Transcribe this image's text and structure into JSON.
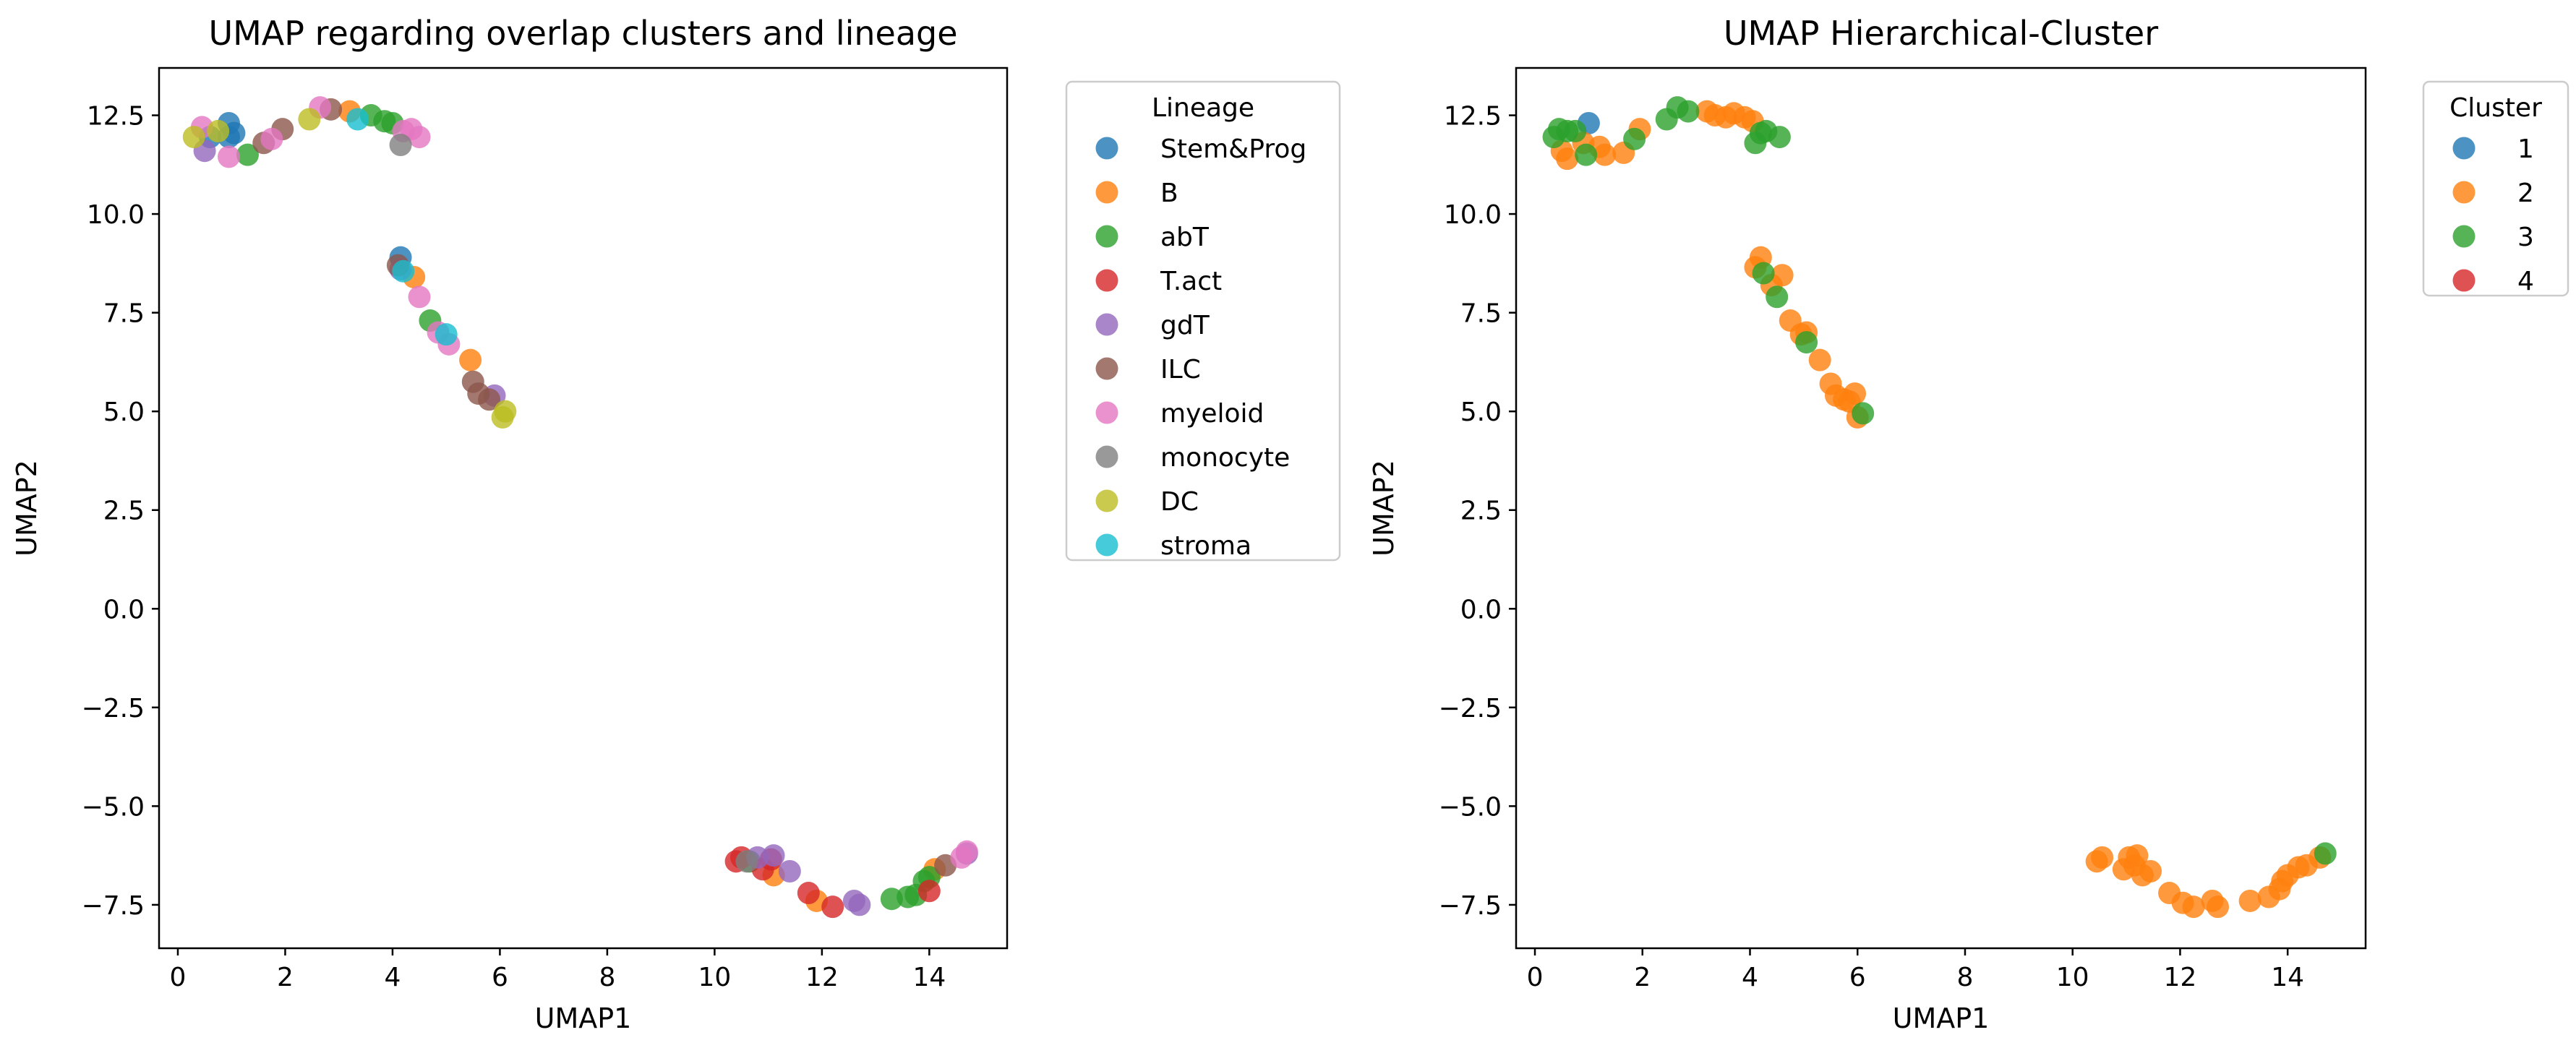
{
  "chart_data": [
    {
      "type": "scatter",
      "title": "UMAP regarding overlap clusters and lineage",
      "xlabel": "UMAP1",
      "ylabel": "UMAP2",
      "xlim": [
        -0.35,
        15.45
      ],
      "ylim": [
        -8.6,
        13.7
      ],
      "xticks": [
        0,
        2,
        4,
        6,
        8,
        10,
        12,
        14
      ],
      "yticks": [
        -7.5,
        -5.0,
        -2.5,
        0.0,
        2.5,
        5.0,
        7.5,
        10.0,
        12.5
      ],
      "ytick_labels": [
        "−7.5",
        "−5.0",
        "−2.5",
        "0.0",
        "2.5",
        "5.0",
        "7.5",
        "10.0",
        "12.5"
      ],
      "grid": false,
      "legend": {
        "title": "Lineage",
        "placement": "outside upper right"
      },
      "series": [
        {
          "name": "Stem&Prog",
          "color": "#1f77b4",
          "points": [
            [
              0.95,
              12.3
            ],
            [
              0.6,
              11.95
            ],
            [
              0.95,
              11.95
            ],
            [
              1.05,
              12.05
            ],
            [
              4.15,
              8.9
            ]
          ]
        },
        {
          "name": "B",
          "color": "#ff7f0e",
          "points": [
            [
              3.2,
              12.6
            ],
            [
              4.4,
              8.4
            ],
            [
              5.45,
              6.3
            ],
            [
              11.1,
              -6.75
            ],
            [
              11.9,
              -7.4
            ],
            [
              14.1,
              -6.6
            ]
          ]
        },
        {
          "name": "abT",
          "color": "#2ca02c",
          "points": [
            [
              1.3,
              11.5
            ],
            [
              3.6,
              12.5
            ],
            [
              3.85,
              12.35
            ],
            [
              4.0,
              12.3
            ],
            [
              4.7,
              7.3
            ],
            [
              10.65,
              -6.4
            ],
            [
              13.3,
              -7.35
            ],
            [
              13.6,
              -7.3
            ],
            [
              13.75,
              -7.25
            ],
            [
              13.9,
              -6.9
            ],
            [
              14.0,
              -6.8
            ]
          ]
        },
        {
          "name": "T.act",
          "color": "#d62728",
          "points": [
            [
              10.4,
              -6.4
            ],
            [
              10.5,
              -6.3
            ],
            [
              10.9,
              -6.6
            ],
            [
              11.05,
              -6.35
            ],
            [
              11.75,
              -7.2
            ],
            [
              12.2,
              -7.55
            ],
            [
              14.0,
              -7.15
            ]
          ]
        },
        {
          "name": "gdT",
          "color": "#9467bd",
          "points": [
            [
              0.5,
              11.6
            ],
            [
              4.15,
              8.6
            ],
            [
              5.9,
              5.4
            ],
            [
              10.8,
              -6.3
            ],
            [
              11.1,
              -6.25
            ],
            [
              11.4,
              -6.65
            ],
            [
              12.6,
              -7.4
            ],
            [
              12.7,
              -7.5
            ],
            [
              14.7,
              -6.2
            ]
          ]
        },
        {
          "name": "ILC",
          "color": "#8c564b",
          "points": [
            [
              1.6,
              11.8
            ],
            [
              1.95,
              12.15
            ],
            [
              2.85,
              12.65
            ],
            [
              4.1,
              8.7
            ],
            [
              5.5,
              5.75
            ],
            [
              5.6,
              5.45
            ],
            [
              5.8,
              5.3
            ],
            [
              14.3,
              -6.5
            ]
          ]
        },
        {
          "name": "myeloid",
          "color": "#e377c2",
          "points": [
            [
              0.45,
              12.2
            ],
            [
              0.95,
              11.45
            ],
            [
              1.75,
              11.9
            ],
            [
              2.65,
              12.7
            ],
            [
              4.2,
              12.1
            ],
            [
              4.35,
              12.15
            ],
            [
              4.5,
              11.95
            ],
            [
              4.5,
              7.9
            ],
            [
              4.85,
              7.0
            ],
            [
              5.05,
              6.7
            ],
            [
              14.6,
              -6.3
            ],
            [
              14.7,
              -6.15
            ]
          ]
        },
        {
          "name": "monocyte",
          "color": "#7f7f7f",
          "points": [
            [
              4.15,
              11.75
            ],
            [
              10.6,
              -6.4
            ]
          ]
        },
        {
          "name": "DC",
          "color": "#bcbd22",
          "points": [
            [
              0.3,
              11.95
            ],
            [
              0.75,
              12.1
            ],
            [
              2.45,
              12.4
            ],
            [
              6.05,
              4.85
            ],
            [
              6.1,
              5.0
            ]
          ]
        },
        {
          "name": "stroma",
          "color": "#17becf",
          "points": [
            [
              3.35,
              12.4
            ],
            [
              4.2,
              8.55
            ],
            [
              5.0,
              6.95
            ]
          ]
        }
      ]
    },
    {
      "type": "scatter",
      "title": "UMAP Hierarchical-Cluster",
      "xlabel": "UMAP1",
      "ylabel": "UMAP2",
      "xlim": [
        -0.35,
        15.45
      ],
      "ylim": [
        -8.6,
        13.7
      ],
      "xticks": [
        0,
        2,
        4,
        6,
        8,
        10,
        12,
        14
      ],
      "yticks": [
        -7.5,
        -5.0,
        -2.5,
        0.0,
        2.5,
        5.0,
        7.5,
        10.0,
        12.5
      ],
      "ytick_labels": [
        "−7.5",
        "−5.0",
        "−2.5",
        "0.0",
        "2.5",
        "5.0",
        "7.5",
        "10.0",
        "12.5"
      ],
      "grid": false,
      "legend": {
        "title": "Cluster",
        "placement": "outside upper right"
      },
      "series": [
        {
          "name": "1",
          "color": "#1f77b4",
          "points": [
            [
              1.0,
              12.3
            ]
          ]
        },
        {
          "name": "2",
          "color": "#ff7f0e",
          "points": [
            [
              0.5,
              11.6
            ],
            [
              0.6,
              11.4
            ],
            [
              0.9,
              11.8
            ],
            [
              1.2,
              11.7
            ],
            [
              1.3,
              11.5
            ],
            [
              1.65,
              11.55
            ],
            [
              1.95,
              12.15
            ],
            [
              3.2,
              12.6
            ],
            [
              3.35,
              12.5
            ],
            [
              3.55,
              12.45
            ],
            [
              3.7,
              12.55
            ],
            [
              3.9,
              12.45
            ],
            [
              4.05,
              12.35
            ],
            [
              4.1,
              8.65
            ],
            [
              4.2,
              8.9
            ],
            [
              4.4,
              8.2
            ],
            [
              4.6,
              8.45
            ],
            [
              4.75,
              7.3
            ],
            [
              4.95,
              6.95
            ],
            [
              5.05,
              7.0
            ],
            [
              5.3,
              6.3
            ],
            [
              5.5,
              5.7
            ],
            [
              5.6,
              5.4
            ],
            [
              5.75,
              5.3
            ],
            [
              5.85,
              5.25
            ],
            [
              5.95,
              5.45
            ],
            [
              6.0,
              4.85
            ],
            [
              10.45,
              -6.4
            ],
            [
              10.55,
              -6.3
            ],
            [
              10.95,
              -6.6
            ],
            [
              11.05,
              -6.3
            ],
            [
              11.15,
              -6.5
            ],
            [
              11.2,
              -6.25
            ],
            [
              11.3,
              -6.75
            ],
            [
              11.45,
              -6.65
            ],
            [
              11.8,
              -7.2
            ],
            [
              12.05,
              -7.45
            ],
            [
              12.25,
              -7.55
            ],
            [
              12.6,
              -7.4
            ],
            [
              12.7,
              -7.55
            ],
            [
              13.3,
              -7.4
            ],
            [
              13.65,
              -7.3
            ],
            [
              13.85,
              -7.1
            ],
            [
              13.9,
              -6.9
            ],
            [
              14.0,
              -6.75
            ],
            [
              14.2,
              -6.55
            ],
            [
              14.35,
              -6.5
            ],
            [
              14.6,
              -6.3
            ]
          ]
        },
        {
          "name": "3",
          "color": "#2ca02c",
          "points": [
            [
              0.35,
              11.95
            ],
            [
              0.45,
              12.15
            ],
            [
              0.6,
              12.1
            ],
            [
              0.75,
              12.1
            ],
            [
              0.95,
              11.5
            ],
            [
              1.85,
              11.9
            ],
            [
              2.45,
              12.4
            ],
            [
              2.65,
              12.7
            ],
            [
              2.85,
              12.6
            ],
            [
              4.1,
              11.8
            ],
            [
              4.2,
              12.05
            ],
            [
              4.3,
              12.1
            ],
            [
              4.55,
              11.95
            ],
            [
              4.25,
              8.5
            ],
            [
              4.5,
              7.9
            ],
            [
              5.05,
              6.75
            ],
            [
              6.1,
              4.95
            ],
            [
              14.7,
              -6.2
            ]
          ]
        },
        {
          "name": "4",
          "color": "#d62728",
          "points": []
        }
      ]
    }
  ]
}
